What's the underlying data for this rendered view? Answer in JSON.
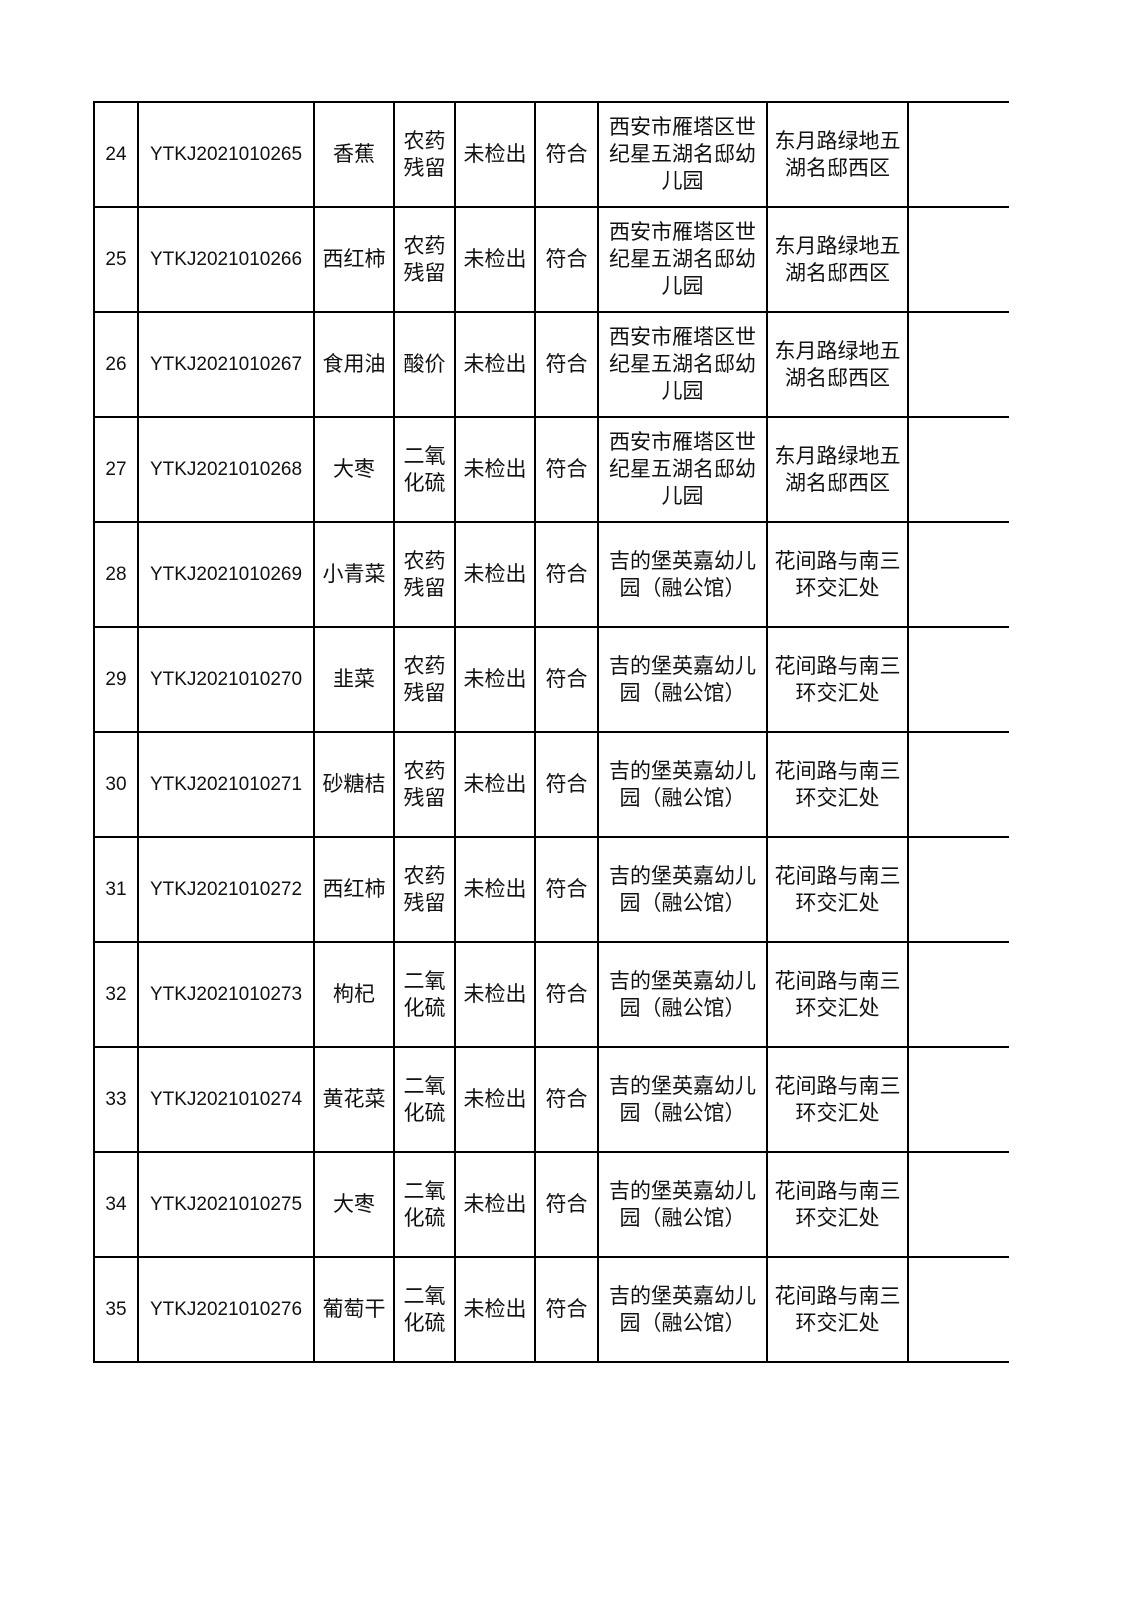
{
  "table": {
    "rows": [
      {
        "no": "24",
        "code": "YTKJ2021010265",
        "sample": "香蕉",
        "item": "农药残留",
        "result": "未检出",
        "judgement": "符合",
        "unit": "西安市雁塔区世纪星五湖名邸幼儿园",
        "address": "东月路绿地五湖名邸西区",
        "note": ""
      },
      {
        "no": "25",
        "code": "YTKJ2021010266",
        "sample": "西红柿",
        "item": "农药残留",
        "result": "未检出",
        "judgement": "符合",
        "unit": "西安市雁塔区世纪星五湖名邸幼儿园",
        "address": "东月路绿地五湖名邸西区",
        "note": ""
      },
      {
        "no": "26",
        "code": "YTKJ2021010267",
        "sample": "食用油",
        "item": "酸价",
        "result": "未检出",
        "judgement": "符合",
        "unit": "西安市雁塔区世纪星五湖名邸幼儿园",
        "address": "东月路绿地五湖名邸西区",
        "note": ""
      },
      {
        "no": "27",
        "code": "YTKJ2021010268",
        "sample": "大枣",
        "item": "二氧化硫",
        "result": "未检出",
        "judgement": "符合",
        "unit": "西安市雁塔区世纪星五湖名邸幼儿园",
        "address": "东月路绿地五湖名邸西区",
        "note": ""
      },
      {
        "no": "28",
        "code": "YTKJ2021010269",
        "sample": "小青菜",
        "item": "农药残留",
        "result": "未检出",
        "judgement": "符合",
        "unit": "吉的堡英嘉幼儿园（融公馆）",
        "address": "花间路与南三环交汇处",
        "note": ""
      },
      {
        "no": "29",
        "code": "YTKJ2021010270",
        "sample": "韭菜",
        "item": "农药残留",
        "result": "未检出",
        "judgement": "符合",
        "unit": "吉的堡英嘉幼儿园（融公馆）",
        "address": "花间路与南三环交汇处",
        "note": ""
      },
      {
        "no": "30",
        "code": "YTKJ2021010271",
        "sample": "砂糖桔",
        "item": "农药残留",
        "result": "未检出",
        "judgement": "符合",
        "unit": "吉的堡英嘉幼儿园（融公馆）",
        "address": "花间路与南三环交汇处",
        "note": ""
      },
      {
        "no": "31",
        "code": "YTKJ2021010272",
        "sample": "西红柿",
        "item": "农药残留",
        "result": "未检出",
        "judgement": "符合",
        "unit": "吉的堡英嘉幼儿园（融公馆）",
        "address": "花间路与南三环交汇处",
        "note": ""
      },
      {
        "no": "32",
        "code": "YTKJ2021010273",
        "sample": "枸杞",
        "item": "二氧化硫",
        "result": "未检出",
        "judgement": "符合",
        "unit": "吉的堡英嘉幼儿园（融公馆）",
        "address": "花间路与南三环交汇处",
        "note": ""
      },
      {
        "no": "33",
        "code": "YTKJ2021010274",
        "sample": "黄花菜",
        "item": "二氧化硫",
        "result": "未检出",
        "judgement": "符合",
        "unit": "吉的堡英嘉幼儿园（融公馆）",
        "address": "花间路与南三环交汇处",
        "note": ""
      },
      {
        "no": "34",
        "code": "YTKJ2021010275",
        "sample": "大枣",
        "item": "二氧化硫",
        "result": "未检出",
        "judgement": "符合",
        "unit": "吉的堡英嘉幼儿园（融公馆）",
        "address": "花间路与南三环交汇处",
        "note": ""
      },
      {
        "no": "35",
        "code": "YTKJ2021010276",
        "sample": "葡萄干",
        "item": "二氧化硫",
        "result": "未检出",
        "judgement": "符合",
        "unit": "吉的堡英嘉幼儿园（融公馆）",
        "address": "花间路与南三环交汇处",
        "note": ""
      }
    ]
  }
}
